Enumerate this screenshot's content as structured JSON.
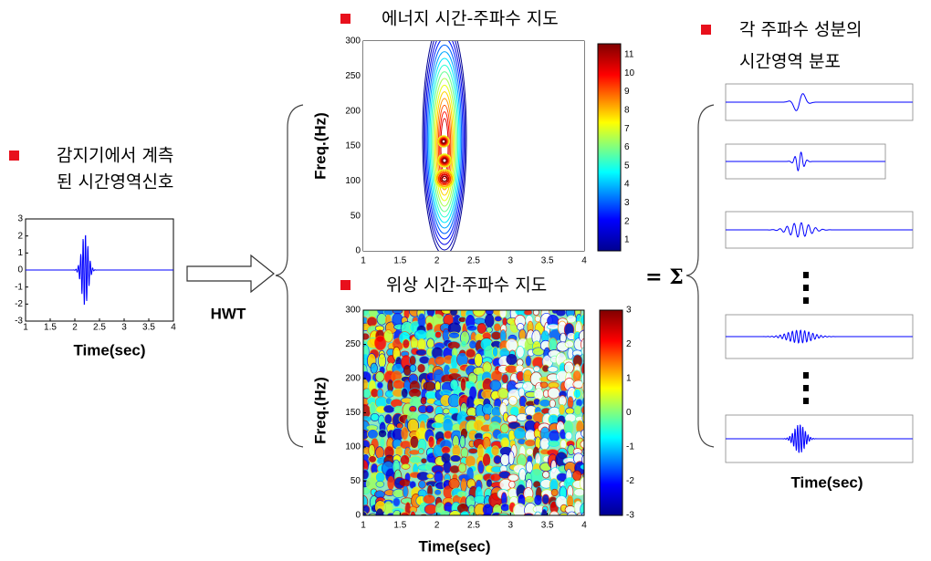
{
  "input": {
    "label_lines": [
      "감지기에서 계측",
      "된 시간영역신호"
    ],
    "xticks": [
      "1",
      "1.5",
      "2",
      "2.5",
      "3",
      "3.5",
      "4"
    ],
    "yticks": [
      "3",
      "2",
      "1",
      "0",
      "-1",
      "-2",
      "-3"
    ],
    "xlabel": "Time(sec)"
  },
  "transform": "HWT",
  "energy_map": {
    "title": "에너지 시간-주파수 지도",
    "ylabel": "Freq.(Hz)",
    "xticks": [
      "1",
      "1.5",
      "2",
      "2.5",
      "3",
      "3.5",
      "4"
    ],
    "yticks": [
      "0",
      "50",
      "100",
      "150",
      "200",
      "250",
      "300"
    ],
    "colorbar_ticks": [
      "1",
      "2",
      "3",
      "4",
      "5",
      "6",
      "7",
      "8",
      "9",
      "10",
      "11"
    ]
  },
  "phase_map": {
    "title": "위상 시간-주파수 지도",
    "ylabel": "Freq.(Hz)",
    "xlabel": "Time(sec)",
    "xticks": [
      "1",
      "1.5",
      "2",
      "2.5",
      "3",
      "3.5",
      "4"
    ],
    "yticks": [
      "0",
      "50",
      "100",
      "150",
      "200",
      "250",
      "300"
    ],
    "colorbar_ticks": [
      "-3",
      "-2",
      "-1",
      "0",
      "1",
      "2",
      "3"
    ]
  },
  "sum_sign": "= Σ",
  "components": {
    "title_lines": [
      "각 주파수 성분의",
      "시간영역 분포"
    ],
    "xlabel": "Time(sec)"
  }
}
